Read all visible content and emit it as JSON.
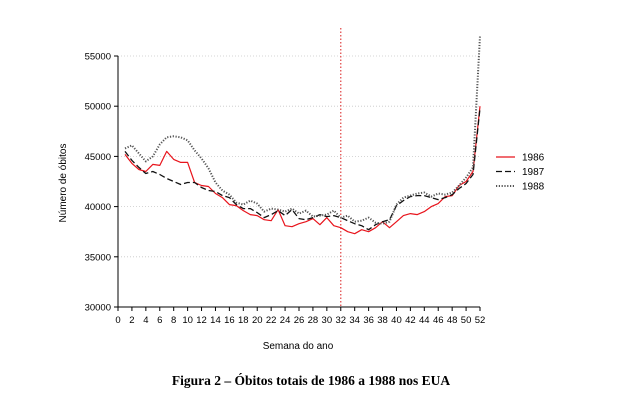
{
  "caption": "Figura 2 – Óbitos totais de 1986 a 1988 nos EUA",
  "chart_data": {
    "type": "line",
    "xlabel": "Semana do ano",
    "ylabel": "Número de óbitos",
    "xlim": [
      0,
      52
    ],
    "ylim": [
      30000,
      55000
    ],
    "x_ticks": [
      0,
      2,
      4,
      6,
      8,
      10,
      12,
      14,
      16,
      18,
      20,
      22,
      24,
      26,
      28,
      30,
      32,
      34,
      36,
      38,
      40,
      42,
      44,
      46,
      48,
      50,
      52
    ],
    "y_ticks": [
      30000,
      35000,
      40000,
      45000,
      50000,
      55000
    ],
    "y_tick_labels": [
      "30000",
      "35000",
      "40000",
      "45000",
      "50000",
      "55000"
    ],
    "grid": "horizontal dotted",
    "legend_position": "right",
    "reference_line": {
      "x": 32,
      "color": "#e04040",
      "style": "dotted"
    },
    "x": [
      1,
      2,
      3,
      4,
      5,
      6,
      7,
      8,
      9,
      10,
      11,
      12,
      13,
      14,
      15,
      16,
      17,
      18,
      19,
      20,
      21,
      22,
      23,
      24,
      25,
      26,
      27,
      28,
      29,
      30,
      31,
      32,
      33,
      34,
      35,
      36,
      37,
      38,
      39,
      40,
      41,
      42,
      43,
      44,
      45,
      46,
      47,
      48,
      49,
      50,
      51,
      52
    ],
    "series": [
      {
        "name": "1986",
        "color": "#e8141c",
        "style": "solid",
        "values": [
          45200,
          44300,
          43700,
          43500,
          44200,
          44100,
          45500,
          44700,
          44400,
          44400,
          42400,
          42100,
          42000,
          41300,
          40900,
          40200,
          40100,
          39600,
          39200,
          39100,
          38700,
          38600,
          39700,
          38100,
          38000,
          38300,
          38500,
          38800,
          38200,
          38900,
          38100,
          37900,
          37500,
          37300,
          37700,
          37500,
          37900,
          38500,
          37900,
          38500,
          39100,
          39300,
          39200,
          39500,
          40000,
          40300,
          41000,
          41100,
          42100,
          42500,
          43500,
          50000
        ]
      },
      {
        "name": "1987",
        "color": "#111111",
        "style": "dashed",
        "values": [
          45500,
          44600,
          43900,
          43300,
          43500,
          43200,
          42800,
          42500,
          42200,
          42400,
          42400,
          41900,
          41600,
          41500,
          41100,
          40900,
          40200,
          39800,
          39800,
          39400,
          38900,
          39200,
          39600,
          39100,
          39700,
          38800,
          38700,
          38900,
          39200,
          39000,
          39100,
          38900,
          38600,
          38300,
          38100,
          37700,
          38200,
          38500,
          38700,
          40100,
          40600,
          41000,
          41100,
          41100,
          40900,
          40700,
          40900,
          41200,
          41800,
          42300,
          43200,
          49800
        ]
      },
      {
        "name": "1988",
        "color": "#555555",
        "style": "dotted",
        "values": [
          45800,
          46100,
          45300,
          44500,
          45000,
          46200,
          46900,
          47000,
          46900,
          46600,
          45600,
          44800,
          43800,
          42400,
          41600,
          41200,
          40400,
          40200,
          40600,
          40300,
          39500,
          39800,
          39700,
          39500,
          39800,
          39300,
          39600,
          39000,
          39100,
          39200,
          39600,
          38900,
          39100,
          38500,
          38600,
          38900,
          38400,
          38300,
          38500,
          40200,
          40900,
          41100,
          41300,
          41400,
          41000,
          41300,
          41200,
          41400,
          42100,
          42900,
          43900,
          57000
        ]
      }
    ]
  }
}
